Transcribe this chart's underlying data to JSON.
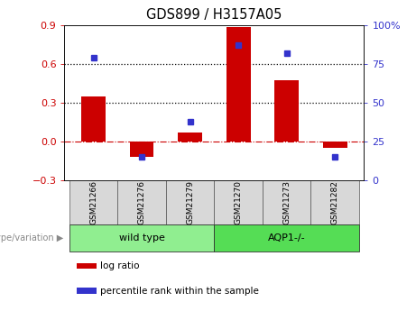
{
  "title": "GDS899 / H3157A05",
  "samples": [
    "GSM21266",
    "GSM21276",
    "GSM21279",
    "GSM21270",
    "GSM21273",
    "GSM21282"
  ],
  "log_ratios": [
    0.35,
    -0.12,
    0.07,
    0.88,
    0.47,
    -0.05
  ],
  "percentile_ranks": [
    79,
    15,
    38,
    87,
    82,
    15
  ],
  "ylim_left": [
    -0.3,
    0.9
  ],
  "ylim_right": [
    0,
    100
  ],
  "yticks_left": [
    -0.3,
    0.0,
    0.3,
    0.6,
    0.9
  ],
  "yticks_right": [
    0,
    25,
    50,
    75,
    100
  ],
  "hlines": [
    0.3,
    0.6
  ],
  "bar_color": "#CC0000",
  "dot_color": "#3333CC",
  "bar_width": 0.5,
  "groups": [
    {
      "label": "wild type",
      "span": [
        0,
        2
      ],
      "color": "#90EE90"
    },
    {
      "label": "AQP1-/-",
      "span": [
        3,
        5
      ],
      "color": "#55DD55"
    }
  ],
  "group_label": "genotype/variation",
  "legend_items": [
    {
      "label": "log ratio",
      "color": "#CC0000"
    },
    {
      "label": "percentile rank within the sample",
      "color": "#3333CC"
    }
  ],
  "zero_line_color": "#CC0000",
  "dotted_line_color": "#000000",
  "tick_label_left_color": "#CC0000",
  "tick_label_right_color": "#3333CC",
  "cell_bg": "#d8d8d8",
  "background_color": "#ffffff"
}
